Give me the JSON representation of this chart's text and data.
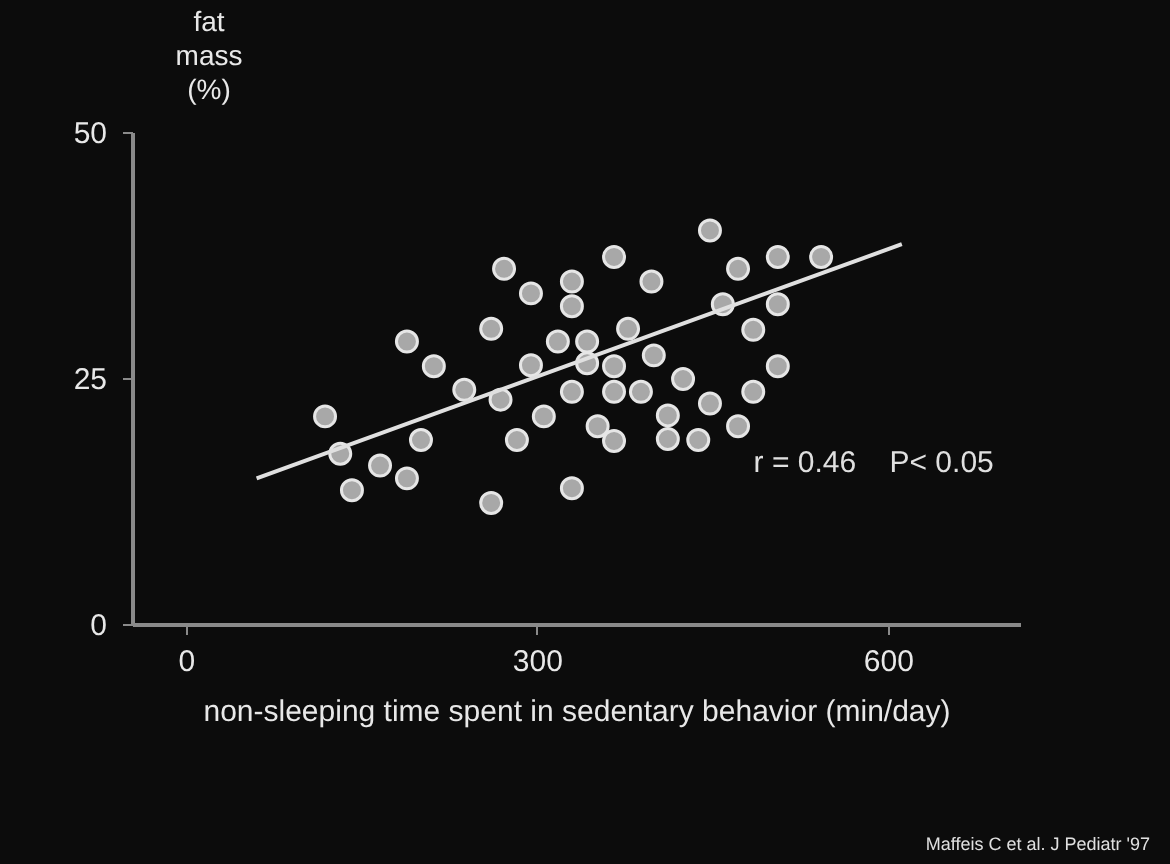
{
  "chart_data": {
    "type": "scatter",
    "xlabel": "non-sleeping time spent in sedentary behavior (min/day)",
    "ylabel": "fat mass (%)",
    "xlim": [
      -46,
      713
    ],
    "ylim": [
      0,
      50
    ],
    "xticks": [
      0,
      300,
      600
    ],
    "yticks": [
      0,
      25,
      50
    ],
    "grid": false,
    "series": [
      {
        "marker": "circle",
        "color": "#a8a8a8",
        "x": [
          272,
          366,
          295,
          330,
          330,
          398,
          189,
          261,
          212,
          238,
          269,
          295,
          318,
          343,
          343,
          378,
          366,
          400,
          330,
          366,
          389,
          306,
          283,
          352,
          366,
          330,
          261,
          201,
          189,
          166,
          142,
          132,
          119,
          448,
          472,
          506,
          543,
          459,
          506,
          485,
          506,
          425,
          485,
          448,
          412,
          472,
          412,
          438
        ],
        "values": [
          36.1,
          37.3,
          33.6,
          34.8,
          32.3,
          34.8,
          28.7,
          30.0,
          26.2,
          23.8,
          22.8,
          26.3,
          28.7,
          28.7,
          26.5,
          30.0,
          26.2,
          27.3,
          23.6,
          23.6,
          23.6,
          21.1,
          18.7,
          20.1,
          18.6,
          13.8,
          12.3,
          18.7,
          14.8,
          16.1,
          13.6,
          17.3,
          21.1,
          40.0,
          36.1,
          37.3,
          37.3,
          32.5,
          32.5,
          29.9,
          26.2,
          24.9,
          23.6,
          22.4,
          21.2,
          20.1,
          18.8,
          18.7
        ]
      },
      {
        "type": "line",
        "color": "#e0e0e0",
        "x": [
          60.5,
          612
        ],
        "values": [
          14.8,
          38.6
        ]
      }
    ],
    "annotations": [
      "r = 0.46    P< 0.05",
      "Maffeis C et al. J Pediatr '97"
    ]
  }
}
